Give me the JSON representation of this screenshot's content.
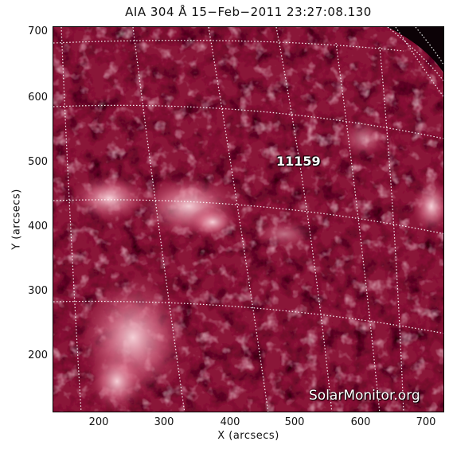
{
  "title": "AIA 304 Å 15−Feb−2011 23:27:08.130",
  "xlabel": "X (arcsecs)",
  "ylabel": "Y (arcsecs)",
  "x_ticks": [
    "200",
    "300",
    "400",
    "500",
    "600",
    "700"
  ],
  "y_ticks": [
    "700",
    "600",
    "500",
    "400",
    "300",
    "200"
  ],
  "region_label": "11159",
  "watermark": "SolarMonitor.org",
  "colors": {
    "chromosphere_base": "#7a0f2d",
    "bright": "#f7c5cf",
    "dark": "#3a0714",
    "grid": "#ffffff"
  }
}
